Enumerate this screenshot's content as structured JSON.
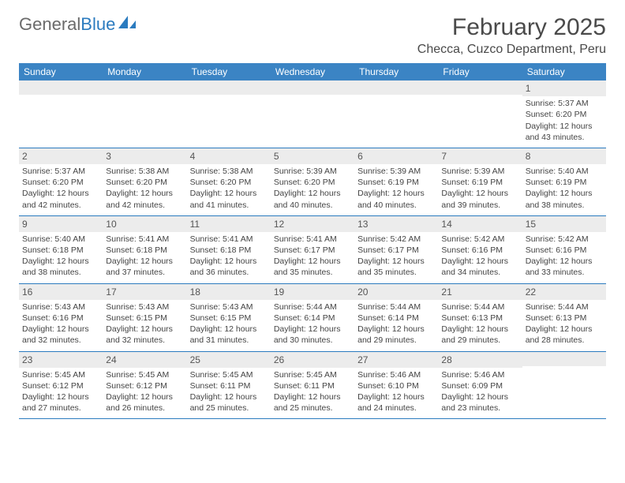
{
  "logo": {
    "text1": "General",
    "text2": "Blue"
  },
  "title": "February 2025",
  "location": "Checca, Cuzco Department, Peru",
  "colors": {
    "header_bg": "#3b84c4",
    "header_text": "#ffffff",
    "border": "#2b7bbf",
    "daynum_bg": "#ececec",
    "body_text": "#444444",
    "logo_gray": "#6b6b6b",
    "logo_blue": "#2b7bbf"
  },
  "dayNames": [
    "Sunday",
    "Monday",
    "Tuesday",
    "Wednesday",
    "Thursday",
    "Friday",
    "Saturday"
  ],
  "weeks": [
    [
      null,
      null,
      null,
      null,
      null,
      null,
      {
        "n": "1",
        "sr": "5:37 AM",
        "ss": "6:20 PM",
        "dl": "12 hours and 43 minutes."
      }
    ],
    [
      {
        "n": "2",
        "sr": "5:37 AM",
        "ss": "6:20 PM",
        "dl": "12 hours and 42 minutes."
      },
      {
        "n": "3",
        "sr": "5:38 AM",
        "ss": "6:20 PM",
        "dl": "12 hours and 42 minutes."
      },
      {
        "n": "4",
        "sr": "5:38 AM",
        "ss": "6:20 PM",
        "dl": "12 hours and 41 minutes."
      },
      {
        "n": "5",
        "sr": "5:39 AM",
        "ss": "6:20 PM",
        "dl": "12 hours and 40 minutes."
      },
      {
        "n": "6",
        "sr": "5:39 AM",
        "ss": "6:19 PM",
        "dl": "12 hours and 40 minutes."
      },
      {
        "n": "7",
        "sr": "5:39 AM",
        "ss": "6:19 PM",
        "dl": "12 hours and 39 minutes."
      },
      {
        "n": "8",
        "sr": "5:40 AM",
        "ss": "6:19 PM",
        "dl": "12 hours and 38 minutes."
      }
    ],
    [
      {
        "n": "9",
        "sr": "5:40 AM",
        "ss": "6:18 PM",
        "dl": "12 hours and 38 minutes."
      },
      {
        "n": "10",
        "sr": "5:41 AM",
        "ss": "6:18 PM",
        "dl": "12 hours and 37 minutes."
      },
      {
        "n": "11",
        "sr": "5:41 AM",
        "ss": "6:18 PM",
        "dl": "12 hours and 36 minutes."
      },
      {
        "n": "12",
        "sr": "5:41 AM",
        "ss": "6:17 PM",
        "dl": "12 hours and 35 minutes."
      },
      {
        "n": "13",
        "sr": "5:42 AM",
        "ss": "6:17 PM",
        "dl": "12 hours and 35 minutes."
      },
      {
        "n": "14",
        "sr": "5:42 AM",
        "ss": "6:16 PM",
        "dl": "12 hours and 34 minutes."
      },
      {
        "n": "15",
        "sr": "5:42 AM",
        "ss": "6:16 PM",
        "dl": "12 hours and 33 minutes."
      }
    ],
    [
      {
        "n": "16",
        "sr": "5:43 AM",
        "ss": "6:16 PM",
        "dl": "12 hours and 32 minutes."
      },
      {
        "n": "17",
        "sr": "5:43 AM",
        "ss": "6:15 PM",
        "dl": "12 hours and 32 minutes."
      },
      {
        "n": "18",
        "sr": "5:43 AM",
        "ss": "6:15 PM",
        "dl": "12 hours and 31 minutes."
      },
      {
        "n": "19",
        "sr": "5:44 AM",
        "ss": "6:14 PM",
        "dl": "12 hours and 30 minutes."
      },
      {
        "n": "20",
        "sr": "5:44 AM",
        "ss": "6:14 PM",
        "dl": "12 hours and 29 minutes."
      },
      {
        "n": "21",
        "sr": "5:44 AM",
        "ss": "6:13 PM",
        "dl": "12 hours and 29 minutes."
      },
      {
        "n": "22",
        "sr": "5:44 AM",
        "ss": "6:13 PM",
        "dl": "12 hours and 28 minutes."
      }
    ],
    [
      {
        "n": "23",
        "sr": "5:45 AM",
        "ss": "6:12 PM",
        "dl": "12 hours and 27 minutes."
      },
      {
        "n": "24",
        "sr": "5:45 AM",
        "ss": "6:12 PM",
        "dl": "12 hours and 26 minutes."
      },
      {
        "n": "25",
        "sr": "5:45 AM",
        "ss": "6:11 PM",
        "dl": "12 hours and 25 minutes."
      },
      {
        "n": "26",
        "sr": "5:45 AM",
        "ss": "6:11 PM",
        "dl": "12 hours and 25 minutes."
      },
      {
        "n": "27",
        "sr": "5:46 AM",
        "ss": "6:10 PM",
        "dl": "12 hours and 24 minutes."
      },
      {
        "n": "28",
        "sr": "5:46 AM",
        "ss": "6:09 PM",
        "dl": "12 hours and 23 minutes."
      },
      null
    ]
  ],
  "labels": {
    "sunrise": "Sunrise: ",
    "sunset": "Sunset: ",
    "daylight": "Daylight: "
  }
}
